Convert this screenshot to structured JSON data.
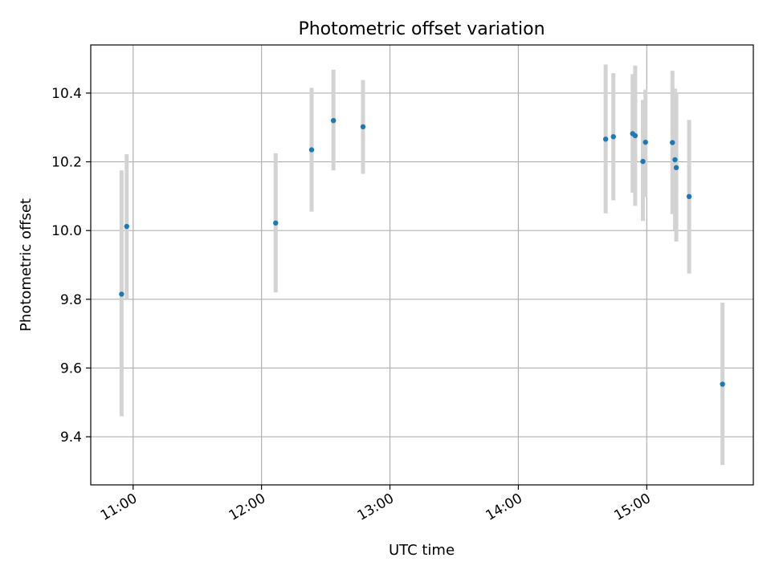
{
  "chart_data": {
    "type": "scatter",
    "title": "Photometric offset variation",
    "xlabel": "UTC time",
    "ylabel": "Photometric offset",
    "x_unit": "hours (UTC)",
    "xlim": [
      10.67,
      15.83
    ],
    "ylim": [
      9.26,
      10.54
    ],
    "x_ticks": [
      {
        "value": 11,
        "label": "11:00"
      },
      {
        "value": 12,
        "label": "12:00"
      },
      {
        "value": 13,
        "label": "13:00"
      },
      {
        "value": 14,
        "label": "14:00"
      },
      {
        "value": 15,
        "label": "15:00"
      }
    ],
    "y_ticks": [
      {
        "value": 9.4,
        "label": "9.4"
      },
      {
        "value": 9.6,
        "label": "9.6"
      },
      {
        "value": 9.8,
        "label": "9.8"
      },
      {
        "value": 10.0,
        "label": "10.0"
      },
      {
        "value": 10.2,
        "label": "10.2"
      },
      {
        "value": 10.4,
        "label": "10.4"
      }
    ],
    "grid": true,
    "point_color": "#1f77b4",
    "errorbar_color": "#d3d3d3",
    "points": [
      {
        "time": "10:55",
        "x": 10.91,
        "y": 9.815,
        "lo": 9.46,
        "hi": 10.175
      },
      {
        "time": "10:57",
        "x": 10.95,
        "y": 10.012,
        "lo": 9.8,
        "hi": 10.222
      },
      {
        "time": "12:07",
        "x": 12.11,
        "y": 10.022,
        "lo": 9.82,
        "hi": 10.225
      },
      {
        "time": "12:24",
        "x": 12.39,
        "y": 10.235,
        "lo": 10.055,
        "hi": 10.415
      },
      {
        "time": "12:34",
        "x": 12.56,
        "y": 10.32,
        "lo": 10.175,
        "hi": 10.468
      },
      {
        "time": "12:48",
        "x": 12.79,
        "y": 10.302,
        "lo": 10.165,
        "hi": 10.438
      },
      {
        "time": "14:40",
        "x": 14.68,
        "y": 10.266,
        "lo": 10.05,
        "hi": 10.483
      },
      {
        "time": "14:44",
        "x": 14.74,
        "y": 10.273,
        "lo": 10.088,
        "hi": 10.458
      },
      {
        "time": "14:53",
        "x": 14.89,
        "y": 10.282,
        "lo": 10.11,
        "hi": 10.455
      },
      {
        "time": "14:54",
        "x": 14.91,
        "y": 10.276,
        "lo": 10.072,
        "hi": 10.48
      },
      {
        "time": "14:58",
        "x": 14.97,
        "y": 10.201,
        "lo": 10.028,
        "hi": 10.38
      },
      {
        "time": "14:59",
        "x": 14.99,
        "y": 10.257,
        "lo": 10.098,
        "hi": 10.41
      },
      {
        "time": "15:12",
        "x": 15.2,
        "y": 10.256,
        "lo": 10.048,
        "hi": 10.465
      },
      {
        "time": "15:13",
        "x": 15.22,
        "y": 10.206,
        "lo": 10.002,
        "hi": 10.413
      },
      {
        "time": "15:14",
        "x": 15.23,
        "y": 10.183,
        "lo": 9.968,
        "hi": 10.4
      },
      {
        "time": "15:20",
        "x": 15.33,
        "y": 10.099,
        "lo": 9.875,
        "hi": 10.322
      },
      {
        "time": "15:36",
        "x": 15.59,
        "y": 9.553,
        "lo": 9.318,
        "hi": 9.79
      }
    ]
  }
}
